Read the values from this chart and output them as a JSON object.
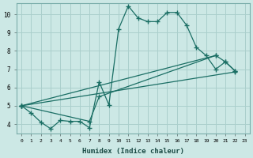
{
  "xlabel": "Humidex (Indice chaleur)",
  "background_color": "#cce8e5",
  "grid_color": "#aacfcc",
  "line_color": "#1a6e64",
  "xlim": [
    -0.5,
    23.5
  ],
  "ylim": [
    3.5,
    10.6
  ],
  "yticks": [
    4,
    5,
    6,
    7,
    8,
    9,
    10
  ],
  "xticks": [
    0,
    1,
    2,
    3,
    4,
    5,
    6,
    7,
    8,
    9,
    10,
    11,
    12,
    13,
    14,
    15,
    16,
    17,
    18,
    19,
    20,
    21,
    22,
    23
  ],
  "series0_x": [
    0,
    1,
    2,
    3,
    4,
    5,
    6,
    7,
    8,
    9,
    10,
    11,
    12,
    13,
    14,
    15,
    16,
    17,
    18,
    19,
    20,
    21,
    22,
    23
  ],
  "series0_y": [
    5.0,
    4.6,
    4.1,
    3.75,
    4.2,
    4.15,
    4.15,
    3.8,
    6.3,
    5.05,
    9.2,
    10.45,
    9.8,
    9.6,
    9.6,
    10.1,
    10.1,
    9.4,
    8.2,
    7.75,
    7.0,
    7.4,
    6.9,
    null
  ],
  "series1_x": [
    0,
    7,
    8,
    20,
    21,
    22
  ],
  "series1_y": [
    5.0,
    4.15,
    5.5,
    7.75,
    7.4,
    6.9
  ],
  "line1_x": [
    0,
    22
  ],
  "line1_y": [
    5.0,
    6.85
  ],
  "line2_x": [
    0,
    20
  ],
  "line2_y": [
    5.0,
    7.75
  ]
}
